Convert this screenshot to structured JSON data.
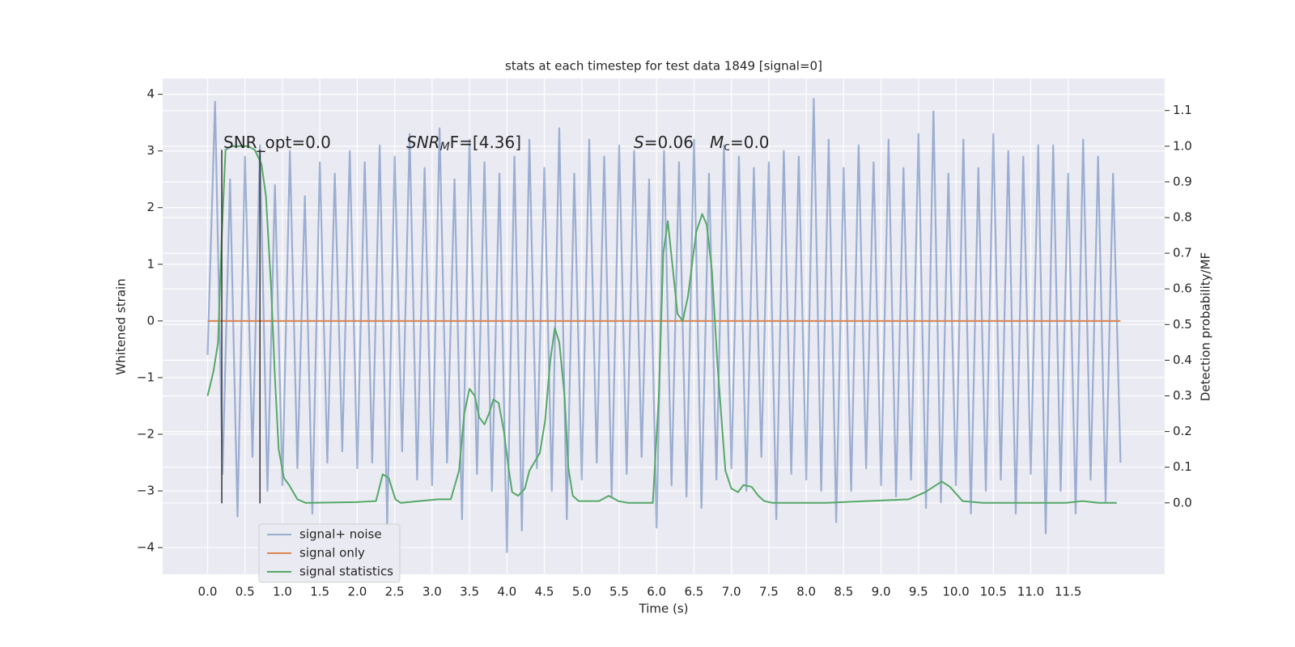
{
  "chart_data": {
    "type": "line",
    "title": "stats at each timestep for test data 1849 [signal=0]",
    "xlabel": "Time (s)",
    "ylabel": "Whitened strain",
    "y2label": "Detection probability/MF",
    "xlim": [
      -0.6,
      12.79
    ],
    "ylim": [
      -4.47,
      4.28
    ],
    "y2lim": [
      -0.2,
      1.19
    ],
    "xticks": [
      {
        "value": 0,
        "label": "0.0"
      },
      0.5,
      {
        "value": 1,
        "label": "1.0"
      },
      1.5,
      {
        "value": 2,
        "label": "2.0"
      },
      2.5,
      {
        "value": 3,
        "label": "3.0"
      },
      3.5,
      {
        "value": 4,
        "label": "4.0"
      },
      4.5,
      {
        "value": 5,
        "label": "5.0"
      },
      5.5,
      {
        "value": 6,
        "label": "6.0"
      },
      6.5,
      {
        "value": 7,
        "label": "7.0"
      },
      7.5,
      {
        "value": 8,
        "label": "8.0"
      },
      8.5,
      {
        "value": 9,
        "label": "9.0"
      },
      9.5,
      {
        "value": 10,
        "label": "10.0"
      },
      10.5,
      {
        "value": 11,
        "label": "11.0"
      },
      11.5
    ],
    "yticks": [
      {
        "value": -4,
        "label": "−4"
      },
      {
        "value": -3,
        "label": "−3"
      },
      {
        "value": -2,
        "label": "−2"
      },
      {
        "value": -1,
        "label": "−1"
      },
      0,
      1,
      2,
      3,
      4
    ],
    "y2ticks": [
      {
        "value": 0,
        "label": "0.0"
      },
      0.1,
      0.2,
      0.3,
      0.4,
      0.5,
      0.6,
      0.7,
      0.8,
      0.9,
      {
        "value": 1,
        "label": "1.0"
      },
      1.1
    ],
    "grid": true,
    "annotations": [
      [
        "SNR_opt=0.0"
      ],
      [
        "SNR",
        "M",
        "F=[4.36]"
      ],
      [
        "S",
        "=0.06"
      ],
      [
        "M",
        "c",
        "=0.0"
      ]
    ],
    "vlines": {
      "x": [
        0.19,
        0.7
      ],
      "ymin": -3.22,
      "ymax": 3.02,
      "color": "#333333"
    },
    "series": [
      {
        "name": "signal+ noise",
        "color": "#4c72b0",
        "x": [
          0,
          0.1,
          0.2,
          0.3,
          0.4,
          0.5,
          0.6,
          0.7,
          0.8,
          0.9,
          1,
          1.1,
          1.2,
          1.3,
          1.4,
          1.5,
          1.6,
          1.7,
          1.8,
          1.9,
          2,
          2.1,
          2.2,
          2.3,
          2.4,
          2.5,
          2.6,
          2.7,
          2.8,
          2.9,
          3,
          3.1,
          3.2,
          3.3,
          3.4,
          3.5,
          3.6,
          3.7,
          3.8,
          3.9,
          4,
          4.1,
          4.2,
          4.3,
          4.4,
          4.5,
          4.6,
          4.7,
          4.8,
          4.9,
          5,
          5.1,
          5.2,
          5.3,
          5.4,
          5.5,
          5.6,
          5.7,
          5.8,
          5.9,
          6,
          6.1,
          6.2,
          6.3,
          6.4,
          6.5,
          6.6,
          6.7,
          6.8,
          6.9,
          7,
          7.1,
          7.2,
          7.3,
          7.4,
          7.5,
          7.6,
          7.7,
          7.8,
          7.9,
          8,
          8.1,
          8.2,
          8.3,
          8.4,
          8.5,
          8.6,
          8.7,
          8.8,
          8.9,
          9,
          9.1,
          9.2,
          9.3,
          9.4,
          9.5,
          9.6,
          9.7,
          9.8,
          9.9,
          10,
          10.1,
          10.2,
          10.3,
          10.4,
          10.5,
          10.6,
          10.7,
          10.8,
          10.9,
          11,
          11.1,
          11.2,
          11.3,
          11.4,
          11.5,
          11.6,
          11.7,
          11.8,
          11.9,
          12,
          12.1,
          12.2
        ],
        "values": [
          -0.6,
          3.87,
          -2.7,
          2.5,
          -3.45,
          2.9,
          -2.4,
          3.1,
          -3.0,
          2.4,
          -2.9,
          3.0,
          -2.6,
          2.2,
          -3.4,
          2.8,
          -2.5,
          2.6,
          -2.3,
          3.0,
          -2.6,
          2.8,
          -2.5,
          3.1,
          -3.6,
          2.9,
          -2.3,
          3.3,
          -2.8,
          2.7,
          -2.9,
          3.4,
          -2.5,
          2.5,
          -3.5,
          3.2,
          -2.7,
          2.8,
          -3.0,
          2.6,
          -4.08,
          2.9,
          -3.7,
          3.2,
          -2.6,
          2.7,
          -3.0,
          3.4,
          -3.5,
          2.6,
          -2.8,
          3.2,
          -2.5,
          2.9,
          -3.1,
          3.1,
          -2.7,
          3.0,
          -2.4,
          2.5,
          -3.65,
          3.0,
          -2.9,
          2.8,
          -3.1,
          3.2,
          -3.3,
          2.6,
          -2.8,
          3.1,
          -2.6,
          2.9,
          -3.0,
          2.7,
          -2.4,
          2.8,
          -3.5,
          3.0,
          -2.7,
          2.9,
          -2.8,
          3.92,
          -3.0,
          3.2,
          -3.55,
          2.7,
          -3.0,
          3.1,
          -2.6,
          2.8,
          -2.9,
          3.2,
          -3.1,
          2.7,
          -2.8,
          3.3,
          -3.3,
          3.7,
          -3.2,
          2.6,
          -2.9,
          3.2,
          -3.4,
          2.7,
          -3.0,
          3.3,
          -2.8,
          3.0,
          -3.4,
          2.9,
          -2.7,
          3.1,
          -3.75,
          3.1,
          -3.0,
          2.6,
          -3.4,
          3.2,
          -2.8,
          2.9,
          -3.2,
          2.6,
          -2.5
        ]
      },
      {
        "name": "signal only",
        "color": "#dd8452",
        "x": [
          0,
          12.2
        ],
        "values": [
          0,
          0
        ]
      },
      {
        "name": "signal statistics",
        "color": "#55a868",
        "axis": "y2",
        "x": [
          0,
          0.08,
          0.14,
          0.19,
          0.24,
          0.32,
          0.54,
          0.63,
          0.72,
          0.78,
          0.85,
          0.9,
          0.95,
          1.02,
          1.09,
          1.2,
          1.31,
          1.98,
          2.25,
          2.34,
          2.42,
          2.51,
          2.58,
          3.08,
          3.25,
          3.36,
          3.43,
          3.5,
          3.57,
          3.63,
          3.7,
          3.76,
          3.82,
          3.89,
          3.96,
          4.02,
          4.07,
          4.15,
          4.24,
          4.3,
          4.44,
          4.51,
          4.58,
          4.64,
          4.7,
          4.77,
          4.82,
          4.88,
          4.96,
          5.23,
          5.36,
          5.49,
          5.62,
          5.95,
          6.03,
          6.09,
          6.15,
          6.28,
          6.35,
          6.42,
          6.53,
          6.61,
          6.67,
          6.74,
          6.81,
          6.88,
          6.92,
          7.0,
          7.09,
          7.16,
          7.27,
          7.36,
          7.44,
          7.55,
          8.27,
          9.37,
          9.59,
          9.81,
          9.92,
          10.09,
          10.36,
          11.47,
          11.69,
          11.91,
          12.15
        ],
        "values": [
          0.3,
          0.37,
          0.45,
          0.75,
          0.99,
          1.0,
          1.0,
          0.99,
          0.95,
          0.86,
          0.6,
          0.35,
          0.15,
          0.07,
          0.05,
          0.01,
          0.0,
          0.002,
          0.005,
          0.08,
          0.07,
          0.01,
          0.0,
          0.01,
          0.01,
          0.09,
          0.25,
          0.32,
          0.3,
          0.24,
          0.22,
          0.25,
          0.29,
          0.28,
          0.2,
          0.1,
          0.03,
          0.02,
          0.04,
          0.09,
          0.14,
          0.23,
          0.4,
          0.49,
          0.45,
          0.3,
          0.1,
          0.02,
          0.005,
          0.005,
          0.02,
          0.005,
          0.0,
          0.0,
          0.3,
          0.7,
          0.79,
          0.53,
          0.51,
          0.58,
          0.76,
          0.81,
          0.78,
          0.65,
          0.4,
          0.2,
          0.09,
          0.04,
          0.03,
          0.05,
          0.045,
          0.02,
          0.005,
          0.0,
          0.0,
          0.01,
          0.03,
          0.06,
          0.045,
          0.005,
          0.0,
          0.0,
          0.005,
          0.0,
          0.0
        ]
      }
    ]
  }
}
